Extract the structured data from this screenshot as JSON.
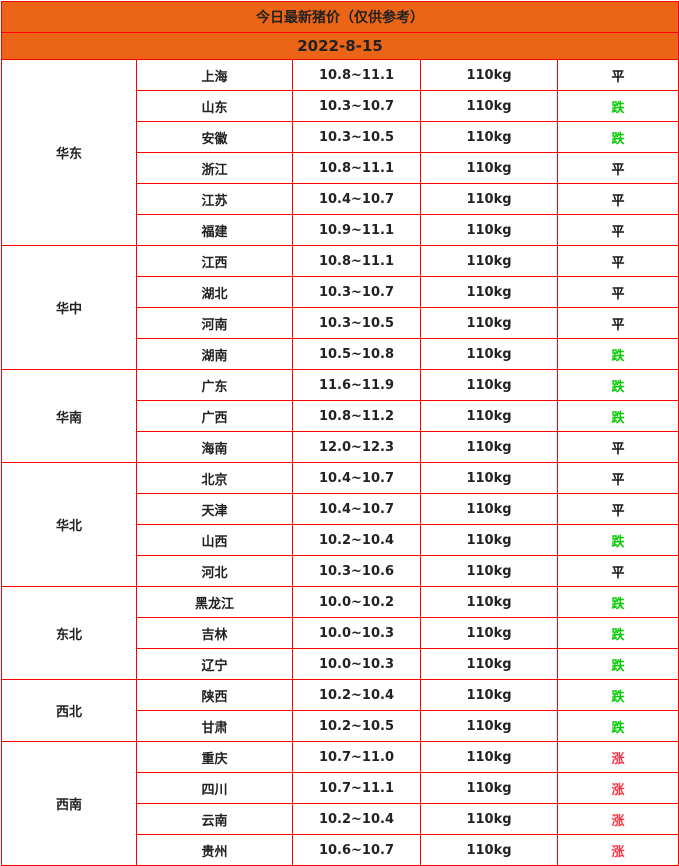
{
  "title": "今日最新猪价（仅供参考）",
  "date": "2022-8-15",
  "colors": {
    "header_bg": "#ec6416",
    "border": "#ff0000",
    "down": "#00cc00",
    "up": "#ff3344",
    "flat": "#111111"
  },
  "regions": [
    {
      "name": "华东",
      "rows": [
        {
          "province": "上海",
          "price": "10.8~11.1",
          "weight": "110kg",
          "trend": "平"
        },
        {
          "province": "山东",
          "price": "10.3~10.7",
          "weight": "110kg",
          "trend": "跌"
        },
        {
          "province": "安徽",
          "price": "10.3~10.5",
          "weight": "110kg",
          "trend": "跌"
        },
        {
          "province": "浙江",
          "price": "10.8~11.1",
          "weight": "110kg",
          "trend": "平"
        },
        {
          "province": "江苏",
          "price": "10.4~10.7",
          "weight": "110kg",
          "trend": "平"
        },
        {
          "province": "福建",
          "price": "10.9~11.1",
          "weight": "110kg",
          "trend": "平"
        }
      ]
    },
    {
      "name": "华中",
      "rows": [
        {
          "province": "江西",
          "price": "10.8~11.1",
          "weight": "110kg",
          "trend": "平"
        },
        {
          "province": "湖北",
          "price": "10.3~10.7",
          "weight": "110kg",
          "trend": "平"
        },
        {
          "province": "河南",
          "price": "10.3~10.5",
          "weight": "110kg",
          "trend": "平"
        },
        {
          "province": "湖南",
          "price": "10.5~10.8",
          "weight": "110kg",
          "trend": "跌"
        }
      ]
    },
    {
      "name": "华南",
      "rows": [
        {
          "province": "广东",
          "price": "11.6~11.9",
          "weight": "110kg",
          "trend": "跌"
        },
        {
          "province": "广西",
          "price": "10.8~11.2",
          "weight": "110kg",
          "trend": "跌"
        },
        {
          "province": "海南",
          "price": "12.0~12.3",
          "weight": "110kg",
          "trend": "平"
        }
      ]
    },
    {
      "name": "华北",
      "rows": [
        {
          "province": "北京",
          "price": "10.4~10.7",
          "weight": "110kg",
          "trend": "平"
        },
        {
          "province": "天津",
          "price": "10.4~10.7",
          "weight": "110kg",
          "trend": "平"
        },
        {
          "province": "山西",
          "price": "10.2~10.4",
          "weight": "110kg",
          "trend": "跌"
        },
        {
          "province": "河北",
          "price": "10.3~10.6",
          "weight": "110kg",
          "trend": "平"
        }
      ]
    },
    {
      "name": "东北",
      "rows": [
        {
          "province": "黑龙江",
          "price": "10.0~10.2",
          "weight": "110kg",
          "trend": "跌"
        },
        {
          "province": "吉林",
          "price": "10.0~10.3",
          "weight": "110kg",
          "trend": "跌"
        },
        {
          "province": "辽宁",
          "price": "10.0~10.3",
          "weight": "110kg",
          "trend": "跌"
        }
      ]
    },
    {
      "name": "西北",
      "rows": [
        {
          "province": "陕西",
          "price": "10.2~10.4",
          "weight": "110kg",
          "trend": "跌"
        },
        {
          "province": "甘肃",
          "price": "10.2~10.5",
          "weight": "110kg",
          "trend": "跌"
        }
      ]
    },
    {
      "name": "西南",
      "rows": [
        {
          "province": "重庆",
          "price": "10.7~11.0",
          "weight": "110kg",
          "trend": "涨"
        },
        {
          "province": "四川",
          "price": "10.7~11.1",
          "weight": "110kg",
          "trend": "涨"
        },
        {
          "province": "云南",
          "price": "10.2~10.4",
          "weight": "110kg",
          "trend": "涨"
        },
        {
          "province": "贵州",
          "price": "10.6~10.7",
          "weight": "110kg",
          "trend": "涨"
        }
      ]
    }
  ]
}
